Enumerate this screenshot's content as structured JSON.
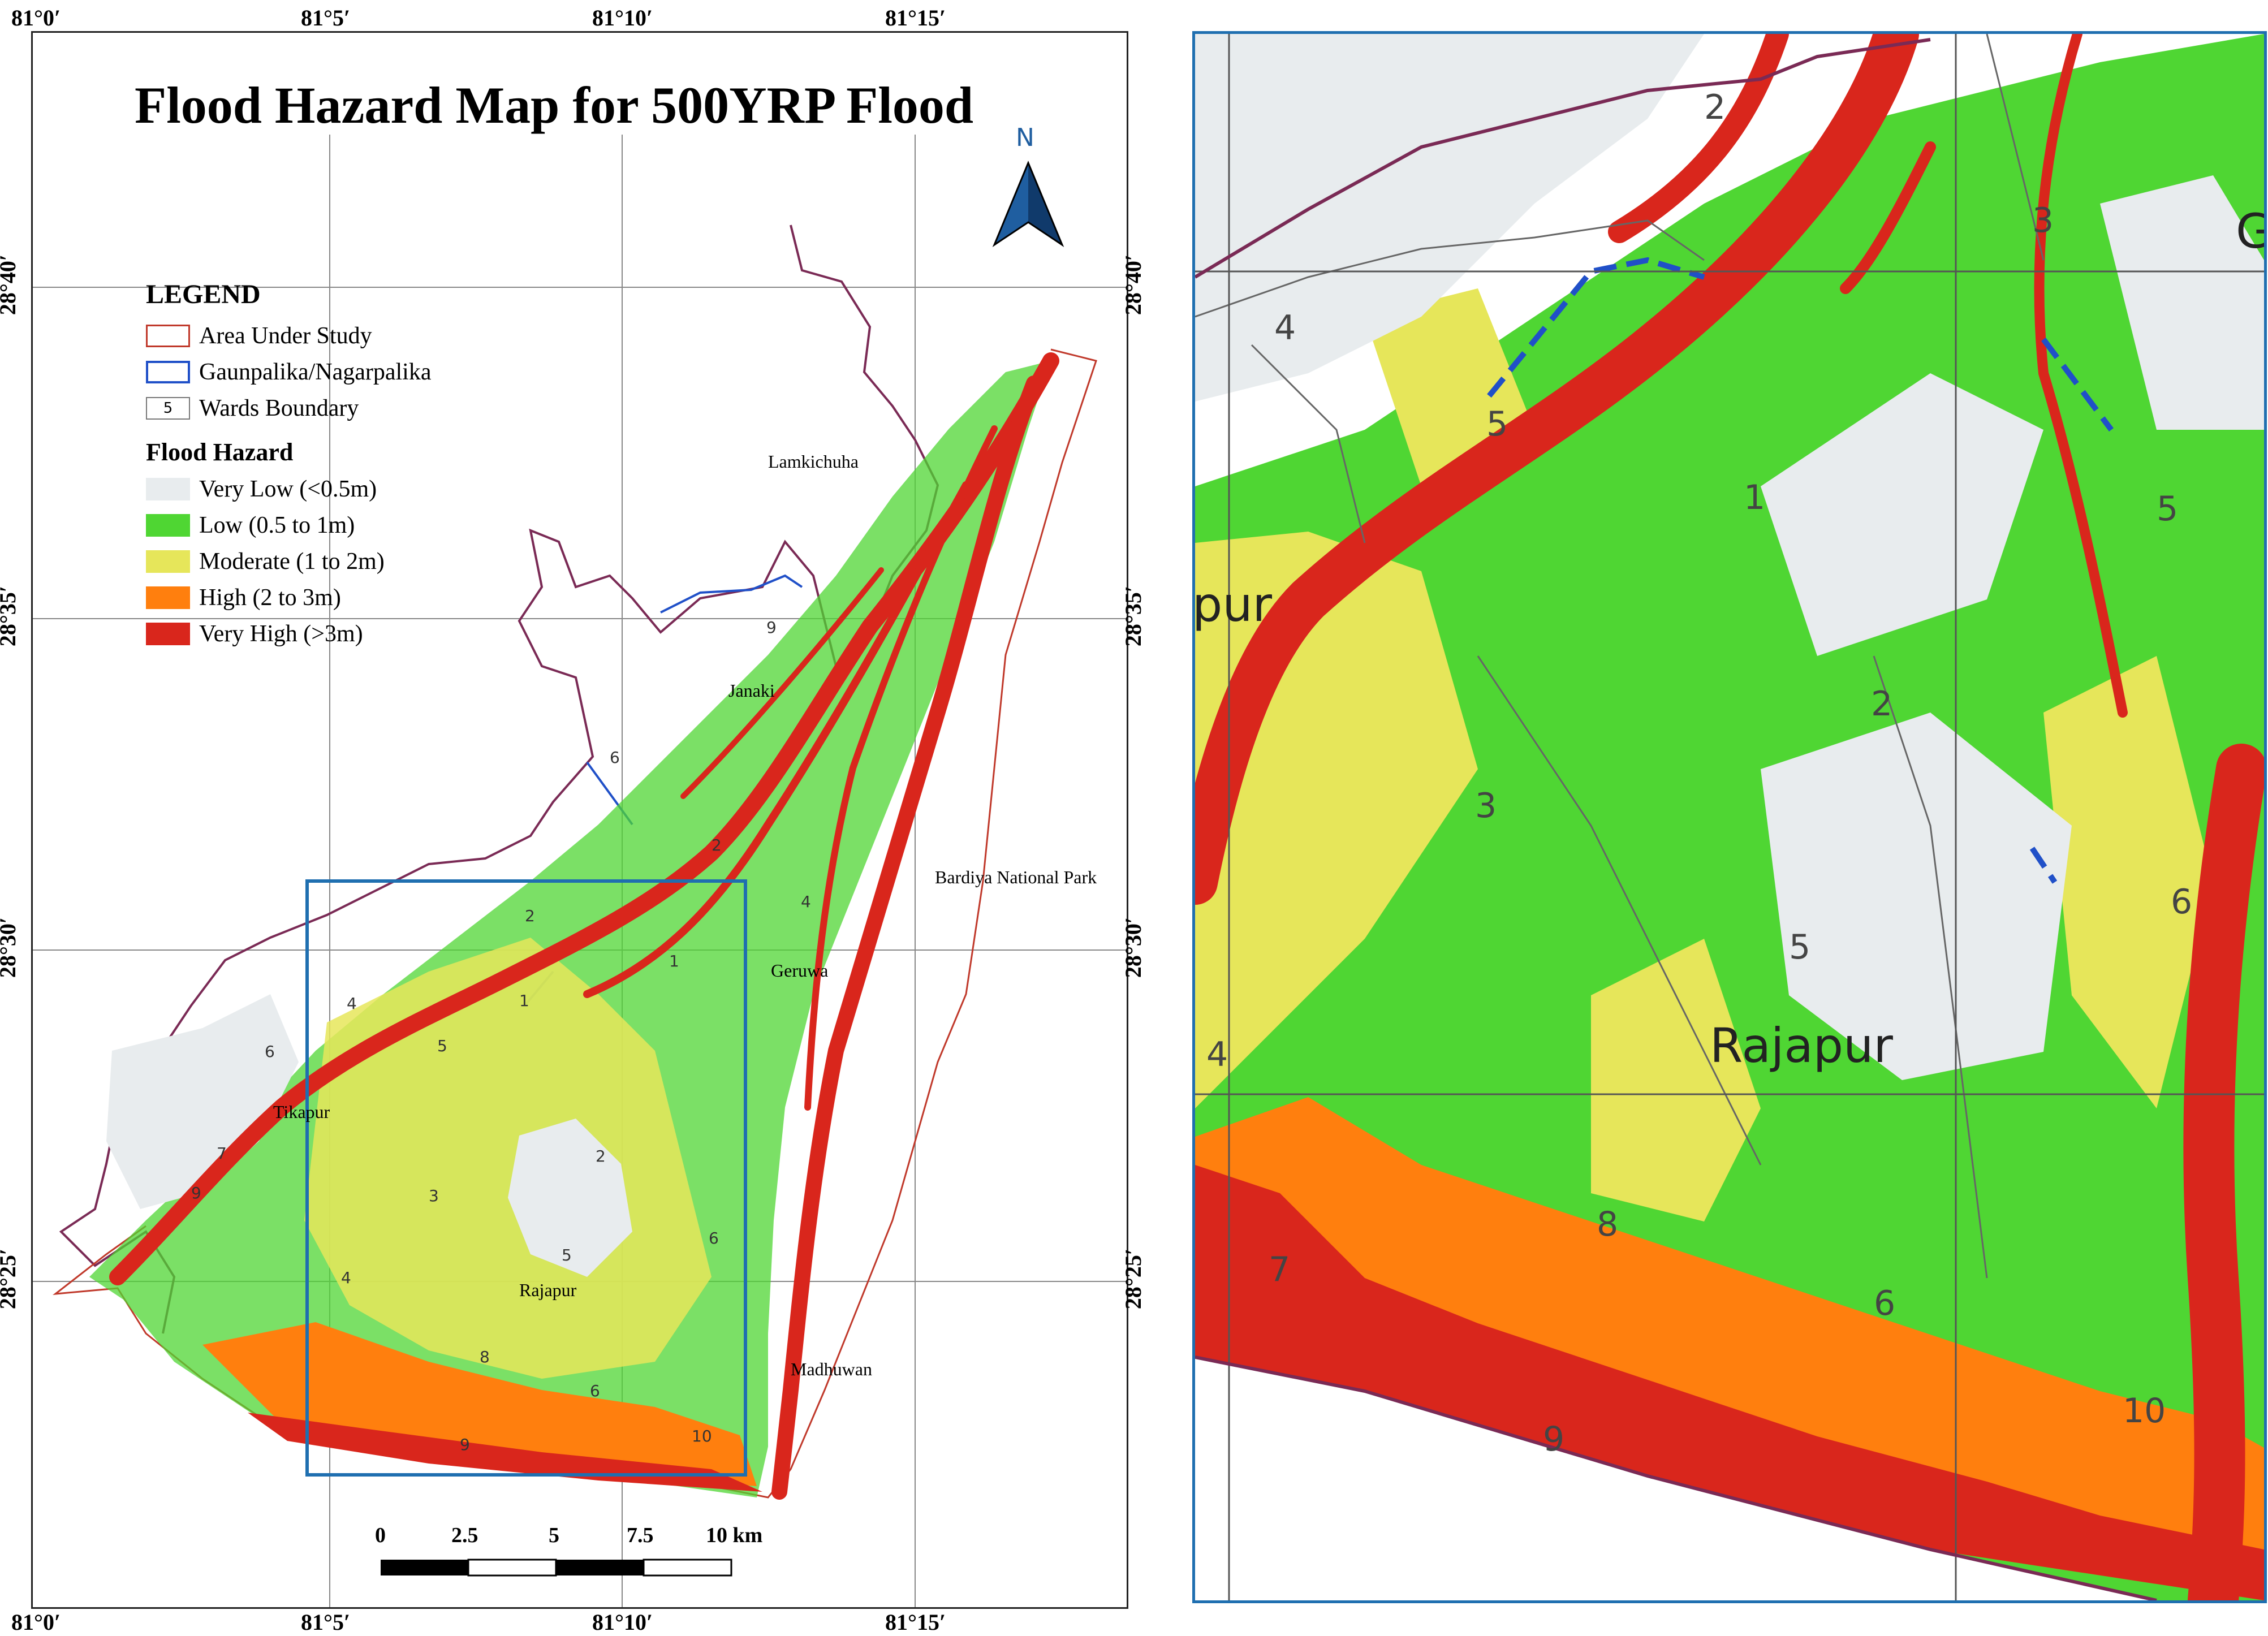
{
  "title": "Flood Hazard Map for 500YRP Flood",
  "north_label": "N",
  "longitude_ticks": [
    "81°0′",
    "81°5′",
    "81°10′",
    "81°15′"
  ],
  "latitude_ticks": [
    "28°40′",
    "28°35′",
    "28°30′",
    "28°25′"
  ],
  "legend": {
    "title": "LEGEND",
    "boundary_items": [
      {
        "label": "Area Under Study",
        "color": "#c0392b"
      },
      {
        "label": "Gaunpalika/Nagarpalika",
        "color": "#2050c8"
      },
      {
        "label": "Wards Boundary",
        "color": "#777777",
        "sample": "5"
      }
    ],
    "hazard_title": "Flood Hazard",
    "hazard_items": [
      {
        "label": "Very Low (<0.5m)",
        "color": "#e8ecee"
      },
      {
        "label": "Low (0.5 to 1m)",
        "color": "#4fd633"
      },
      {
        "label": "Moderate (1 to 2m)",
        "color": "#e6e65a"
      },
      {
        "label": "High (2 to 3m)",
        "color": "#ff7f0e"
      },
      {
        "label": "Very High (>3m)",
        "color": "#d9261c"
      }
    ]
  },
  "places": {
    "lamkichuha": "Lamkichuha",
    "janaki": "Janaki",
    "bardiya": "Bardiya National Park",
    "geruwa": "Geruwa",
    "tikapur": "Tikapur",
    "rajapur": "Rajapur",
    "madhuwan": "Madhuwan"
  },
  "main_wards": [
    "2",
    "4",
    "5",
    "6",
    "7",
    "9",
    "3",
    "1",
    "2",
    "5",
    "6",
    "8",
    "4",
    "9",
    "6",
    "10",
    "4",
    "2",
    "9",
    "6",
    "1"
  ],
  "inset_wards": [
    "2",
    "3",
    "4",
    "5",
    "1",
    "5",
    "2",
    "3",
    "5",
    "6",
    "4",
    "8",
    "7",
    "6",
    "9",
    "10"
  ],
  "inset_labels": {
    "rajapur": "Rajapur",
    "pur": "pur",
    "g": "G"
  },
  "scale": {
    "ticks": [
      "0",
      "2.5",
      "5",
      "7.5",
      "10 km"
    ]
  }
}
